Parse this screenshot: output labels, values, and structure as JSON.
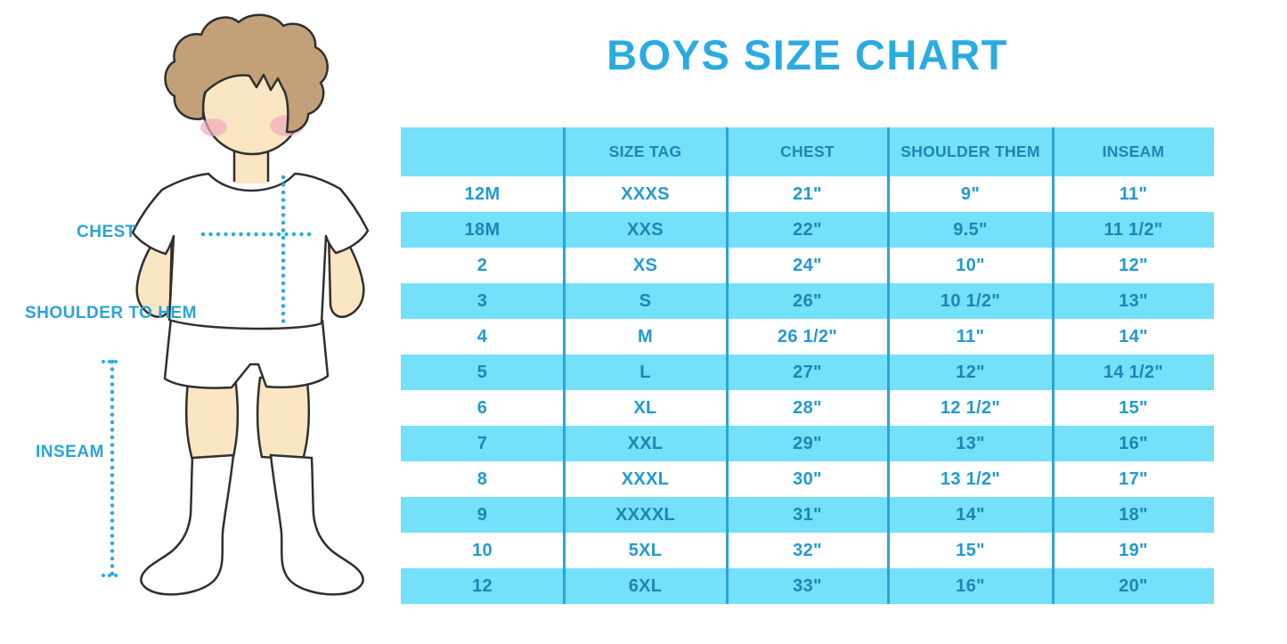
{
  "title": "BOYS SIZE CHART",
  "figure": {
    "description": "cartoon boy in white t-shirt, shorts and knee socks with measurement guides",
    "labels": {
      "chest": "CHEST",
      "shoulder_to_hem": "SHOULDER TO HEM",
      "inseam": "INSEAM"
    }
  },
  "chart_data": {
    "type": "table",
    "title": "BOYS SIZE CHART",
    "columns": [
      "",
      "SIZE TAG",
      "CHEST",
      "SHOULDER THEM",
      "INSEAM"
    ],
    "rows": [
      [
        "12M",
        "XXXS",
        "21\"",
        "9\"",
        "11\""
      ],
      [
        "18M",
        "XXS",
        "22\"",
        "9.5\"",
        "11 1/2\""
      ],
      [
        "2",
        "XS",
        "24\"",
        "10\"",
        "12\""
      ],
      [
        "3",
        "S",
        "26\"",
        "10 1/2\"",
        "13\""
      ],
      [
        "4",
        "M",
        "26 1/2\"",
        "11\"",
        "14\""
      ],
      [
        "5",
        "L",
        "27\"",
        "12\"",
        "14 1/2\""
      ],
      [
        "6",
        "XL",
        "28\"",
        "12 1/2\"",
        "15\""
      ],
      [
        "7",
        "XXL",
        "29\"",
        "13\"",
        "16\""
      ],
      [
        "8",
        "XXXL",
        "30\"",
        "13 1/2\"",
        "17\""
      ],
      [
        "9",
        "XXXXL",
        "31\"",
        "14\"",
        "18\""
      ],
      [
        "10",
        "5XL",
        "32\"",
        "15\"",
        "19\""
      ],
      [
        "12",
        "6XL",
        "33\"",
        "16\"",
        "20\""
      ]
    ],
    "layout": {
      "striped": "alternating white and light-blue rows starting white",
      "header_background": "light-blue",
      "column_dividers": "solid blue vertical lines"
    }
  },
  "colors": {
    "title_blue": "#29ABE2",
    "row_blue": "#74E0FA",
    "divider_blue": "#2BA4D9",
    "header_text": "#1E85B4",
    "body_text": "#2199D4",
    "label_blue": "#29A3DB",
    "dotted_line": "#29ABE2",
    "skin": "#FAE6C2",
    "hair": "#C2A179",
    "blush": "#F2A9BD",
    "outline": "#2F2F2F"
  }
}
